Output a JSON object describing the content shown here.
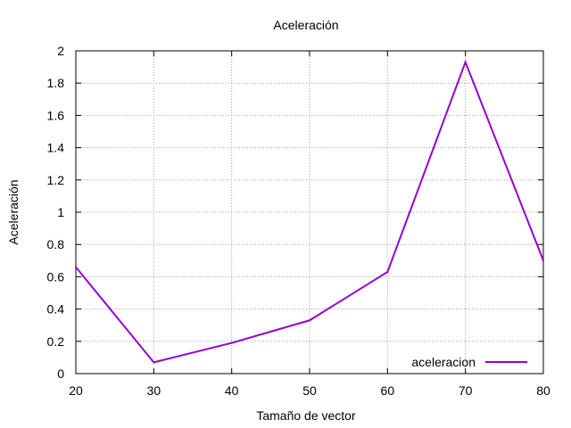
{
  "chart_data": {
    "type": "line",
    "title": "Aceleración",
    "xlabel": "Tamaño de vector",
    "ylabel": "Aceleración",
    "xlim": [
      20,
      80
    ],
    "ylim": [
      0,
      2
    ],
    "x_ticks": [
      20,
      30,
      40,
      50,
      60,
      70,
      80
    ],
    "y_ticks": [
      0,
      0.2,
      0.4,
      0.6,
      0.8,
      1,
      1.2,
      1.4,
      1.6,
      1.8,
      2
    ],
    "grid": true,
    "legend_position": "bottom-right",
    "series": [
      {
        "name": "aceleracion",
        "color": "#9400d3",
        "x": [
          20,
          30,
          40,
          50,
          60,
          70,
          80
        ],
        "y": [
          0.66,
          0.07,
          0.19,
          0.33,
          0.63,
          1.93,
          0.7
        ]
      }
    ]
  }
}
